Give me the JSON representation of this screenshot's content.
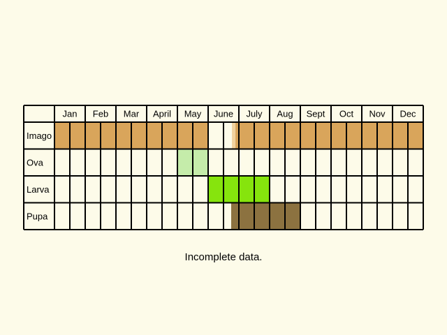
{
  "chart_data": {
    "type": "table",
    "months": [
      "Jan",
      "Feb",
      "Mar",
      "April",
      "May",
      "June",
      "July",
      "Aug",
      "Sept",
      "Oct",
      "Nov",
      "Dec"
    ],
    "periods_per_month": 2,
    "rows": [
      {
        "label": "Imago",
        "color": "#d9a55b",
        "light_color": "#f2d29e",
        "periods": [
          "full",
          "full",
          "full",
          "full",
          "full",
          "full",
          "full",
          "full",
          "full",
          "full",
          "none",
          "partial",
          "full",
          "full",
          "full",
          "full",
          "full",
          "full",
          "full",
          "full",
          "full",
          "full",
          "full",
          "full"
        ]
      },
      {
        "label": "Ova",
        "color": "#c5ecaa",
        "periods": [
          "none",
          "none",
          "none",
          "none",
          "none",
          "none",
          "none",
          "none",
          "full",
          "full",
          "none",
          "none",
          "none",
          "none",
          "none",
          "none",
          "none",
          "none",
          "none",
          "none",
          "none",
          "none",
          "none",
          "none"
        ]
      },
      {
        "label": "Larva",
        "color": "#86e40d",
        "periods": [
          "none",
          "none",
          "none",
          "none",
          "none",
          "none",
          "none",
          "none",
          "none",
          "none",
          "full",
          "full",
          "full",
          "full",
          "none",
          "none",
          "none",
          "none",
          "none",
          "none",
          "none",
          "none",
          "none",
          "none"
        ]
      },
      {
        "label": "Pupa",
        "color": "#8c7240",
        "periods": [
          "none",
          "none",
          "none",
          "none",
          "none",
          "none",
          "none",
          "none",
          "none",
          "none",
          "none",
          "partial",
          "full",
          "full",
          "full",
          "full",
          "none",
          "none",
          "none",
          "none",
          "none",
          "none",
          "none",
          "none"
        ]
      }
    ],
    "note": "Incomplete data."
  }
}
